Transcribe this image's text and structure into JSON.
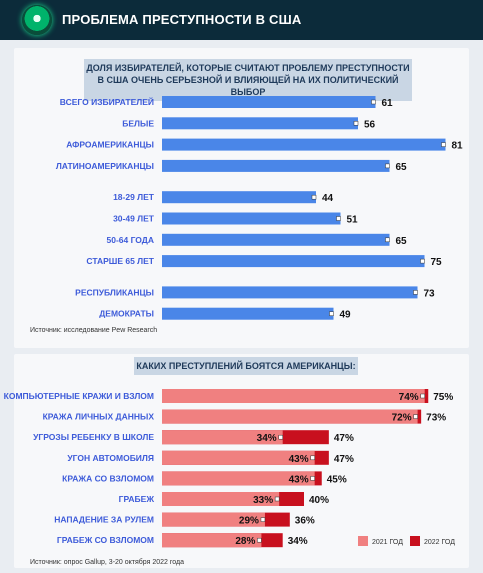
{
  "header": {
    "title": "ПРОБЛЕМА ПРЕСТУПНОСТИ В США"
  },
  "chart_data": [
    {
      "type": "bar",
      "title": "ДОЛЯ ИЗБИРАТЕЛЕЙ, КОТОРЫЕ СЧИТАЮТ ПРОБЛЕМУ ПРЕСТУПНОСТИ В США ОЧЕНЬ СЕРЬЕЗНОЙ И ВЛИЯЮЩЕЙ НА ИХ ПОЛИТИЧЕСКИЙ ВЫБОР",
      "categories": [
        "ВСЕГО ИЗБИРАТЕЛЕЙ",
        "БЕЛЫЕ",
        "АФРОАМЕРИКАНЦЫ",
        "ЛАТИНОАМЕРИКАНЦЫ",
        "18-29 ЛЕТ",
        "30-49 ЛЕТ",
        "50-64 ГОДА",
        "СТАРШЕ 65 ЛЕТ",
        "РЕСПУБЛИКАНЦЫ",
        "ДЕМОКРАТЫ"
      ],
      "values": [
        61,
        56,
        81,
        65,
        44,
        51,
        65,
        75,
        73,
        49
      ],
      "groups": [
        4,
        4,
        2
      ],
      "color": "#4a86e8",
      "source": "Источник: исследование Pew Research"
    },
    {
      "type": "bar",
      "title": "КАКИХ ПРЕСТУПЛЕНИЙ БОЯТСЯ АМЕРИКАНЦЫ:",
      "categories": [
        "КОМПЬЮТЕРНЫЕ КРАЖИ И ВЗЛОМ",
        "КРАЖА ЛИЧНЫХ ДАННЫХ",
        "УГРОЗЫ РЕБЕНКУ В ШКОЛЕ",
        "УГОН АВТОМОБИЛЯ",
        "КРАЖА СО ВЗЛОМОМ",
        "ГРАБЕЖ",
        "НАПАДЕНИЕ ЗА РУЛЕМ",
        "ГРАБЕЖ СО ВЗЛОМОМ"
      ],
      "series": [
        {
          "name": "2021 ГОД",
          "values": [
            74,
            72,
            34,
            43,
            43,
            33,
            29,
            28
          ],
          "labels": [
            "74%",
            "72%",
            "34%",
            "43%",
            "43%",
            "33%",
            "29%",
            "28%"
          ],
          "color": "#f08080"
        },
        {
          "name": "2022 ГОД",
          "values": [
            75,
            73,
            47,
            47,
            45,
            40,
            36,
            34
          ],
          "labels": [
            "75%",
            "73%",
            "47%",
            "47%",
            "45%",
            "40%",
            "36%",
            "34%"
          ],
          "color": "#c8101e"
        }
      ],
      "source": "Источник: опрос Gallup, 3-20 октября 2022 года"
    }
  ]
}
